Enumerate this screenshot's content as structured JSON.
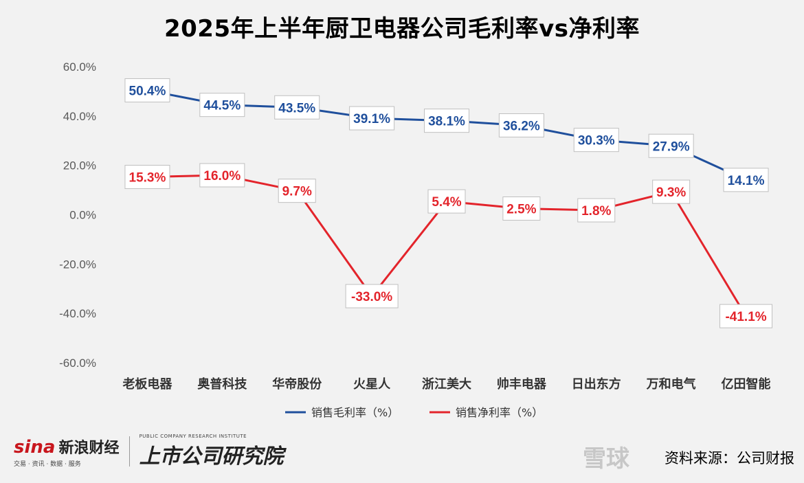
{
  "chart_data": {
    "type": "line",
    "title": "2025年上半年厨卫电器公司毛利率vs净利率",
    "categories": [
      "老板电器",
      "奥普科技",
      "华帝股份",
      "火星人",
      "浙江美大",
      "帅丰电器",
      "日出东方",
      "万和电气",
      "亿田智能"
    ],
    "series": [
      {
        "name": "销售毛利率（%）",
        "color": "#1f4f9c",
        "values": [
          50.4,
          44.5,
          43.5,
          39.1,
          38.1,
          36.2,
          30.3,
          27.9,
          14.1
        ],
        "labels": [
          "50.4%",
          "44.5%",
          "43.5%",
          "39.1%",
          "38.1%",
          "36.2%",
          "30.3%",
          "27.9%",
          "14.1%"
        ]
      },
      {
        "name": "销售净利率（%）",
        "color": "#e3242b",
        "values": [
          15.3,
          16.0,
          9.7,
          -33.0,
          5.4,
          2.5,
          1.8,
          9.3,
          -41.1
        ],
        "labels": [
          "15.3%",
          "16.0%",
          "9.7%",
          "-33.0%",
          "5.4%",
          "2.5%",
          "1.8%",
          "9.3%",
          "-41.1%"
        ]
      }
    ],
    "ylim": [
      -60,
      60
    ],
    "yticks": [
      "60.0%",
      "40.0%",
      "20.0%",
      "0.0%",
      "-20.0%",
      "-40.0%",
      "-60.0%"
    ],
    "ytick_values": [
      60,
      40,
      20,
      0,
      -20,
      -40,
      -60
    ],
    "grid": false,
    "legend_position": "bottom"
  },
  "footer": {
    "brand_mark": "sina",
    "brand_name": "新浪财经",
    "brand_sub": "交易 · 资讯 · 数据 · 服务",
    "institute_en": "PUBLIC COMPANY RESEARCH INSTITUTE",
    "institute_cn": "上市公司研究院",
    "source": "资料来源：公司财报",
    "watermark": "雪球"
  }
}
